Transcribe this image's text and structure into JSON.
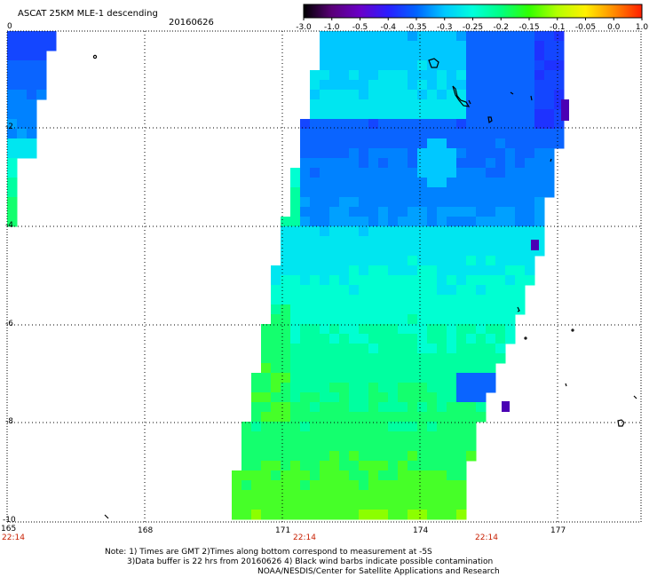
{
  "header": {
    "title": "ASCAT 25KM MLE-1 descending",
    "date": "20160626"
  },
  "colorbar": {
    "labels": [
      "-3.0",
      "-1.0",
      "-0.5",
      "-0.4",
      "-0.35",
      "-0.3",
      "-0.25",
      "-0.2",
      "-0.15",
      "-0.1",
      "-0.05",
      "0.0",
      "1.0"
    ],
    "colors": [
      "#000000",
      "#5a0078",
      "#6a00c8",
      "#2a1eff",
      "#0064ff",
      "#00c8ff",
      "#00ffdc",
      "#00ff82",
      "#32ff00",
      "#b4ff00",
      "#fff000",
      "#ff8c00",
      "#ff1e00"
    ]
  },
  "axes": {
    "lat_ticks": [
      "0",
      "-2",
      "-4",
      "-6",
      "-8",
      "-10"
    ],
    "lon_ticks": [
      "165",
      "168",
      "171",
      "174",
      "177"
    ],
    "time_labels": [
      "22:14",
      "22:14",
      "22:14"
    ]
  },
  "notes": {
    "line1": "Note: 1) Times are GMT 2)Times along bottom correspond to measurement at -5S",
    "line2": "3)Data buffer is 22 hrs from 20160626 4) Black wind barbs indicate possible contamination",
    "line3": "NOAA/NESDIS/Center for Satellite Applications and Research"
  }
}
